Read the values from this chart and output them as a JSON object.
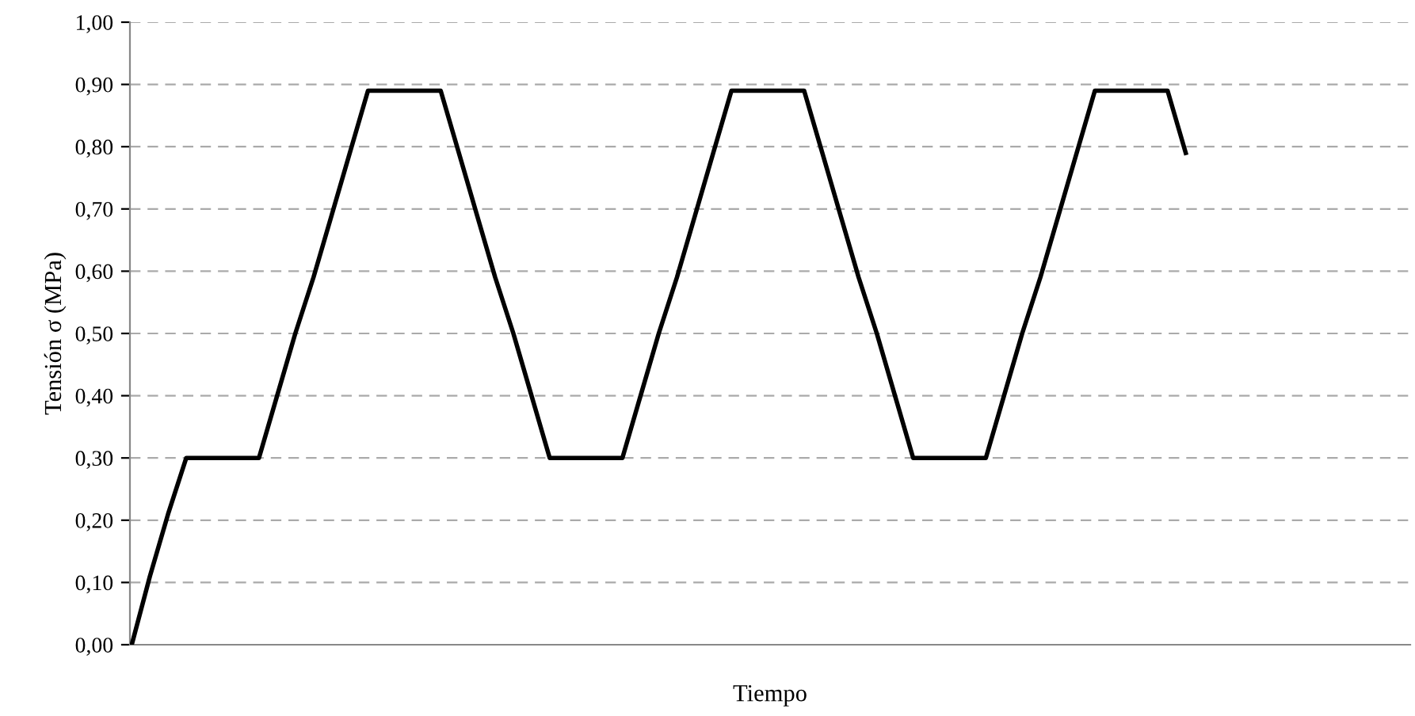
{
  "chart_data": {
    "type": "line",
    "xlabel": "Tiempo",
    "ylabel": "Tensión σ (MPa)",
    "categories": [
      null,
      null,
      null,
      null,
      null,
      null,
      null,
      null,
      null,
      null,
      null,
      null,
      null,
      null,
      null,
      null,
      null,
      null,
      null,
      null,
      null,
      null,
      null,
      null,
      null,
      null,
      null,
      null,
      null,
      null,
      null,
      null,
      null,
      null,
      null,
      null,
      null,
      null,
      null,
      null,
      null,
      null,
      null,
      null,
      null,
      null,
      null,
      null,
      null,
      null,
      null,
      null,
      null,
      null,
      null,
      null,
      null,
      null,
      null
    ],
    "series": [
      {
        "color": "#000000",
        "values": [
          0.0,
          0.11,
          0.21,
          0.3,
          0.3,
          0.3,
          0.3,
          0.3,
          0.4,
          0.5,
          0.59,
          0.69,
          0.79,
          0.89,
          0.89,
          0.89,
          0.89,
          0.89,
          0.79,
          0.69,
          0.59,
          0.5,
          0.4,
          0.3,
          0.3,
          0.3,
          0.3,
          0.3,
          0.4,
          0.5,
          0.59,
          0.69,
          0.79,
          0.89,
          0.89,
          0.89,
          0.89,
          0.89,
          0.79,
          0.69,
          0.59,
          0.5,
          0.4,
          0.3,
          0.3,
          0.3,
          0.3,
          0.3,
          0.4,
          0.5,
          0.59,
          0.69,
          0.79,
          0.89,
          0.89,
          0.89,
          0.89,
          0.89,
          0.79
        ]
      }
    ],
    "ylim": [
      0,
      1
    ],
    "yticks": [
      {
        "value": 0,
        "label": "0,00"
      },
      {
        "value": 0.1,
        "label": "0,10"
      },
      {
        "value": 0.2,
        "label": "0,20"
      },
      {
        "value": 0.3,
        "label": "0,30"
      },
      {
        "value": 0.4,
        "label": "0,40"
      },
      {
        "value": 0.5,
        "label": "0,50"
      },
      {
        "value": 0.6,
        "label": "0,60"
      },
      {
        "value": 0.7,
        "label": "0,70"
      },
      {
        "value": 0.8,
        "label": "0,80"
      },
      {
        "value": 0.9,
        "label": "0,90"
      },
      {
        "value": 1.0,
        "label": "1,00"
      }
    ],
    "tick_labels": "y",
    "grid": "y",
    "marker": "none",
    "line_style": "solid",
    "legend": false
  }
}
